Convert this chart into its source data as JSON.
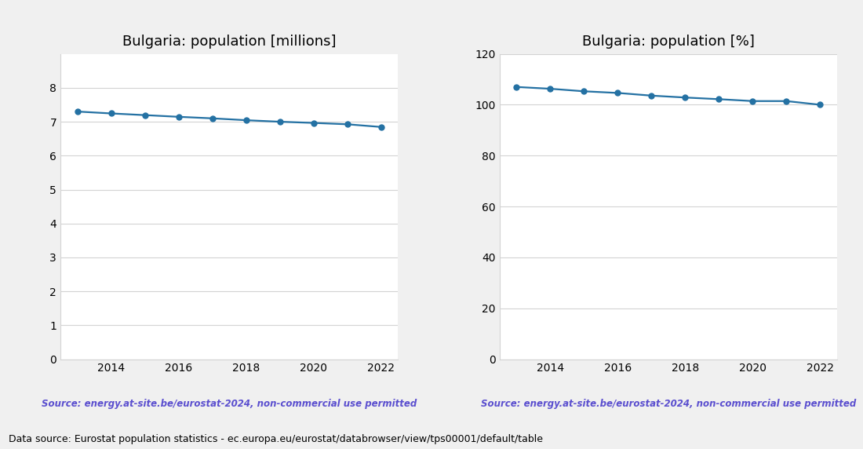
{
  "years": [
    2013,
    2014,
    2015,
    2016,
    2017,
    2018,
    2019,
    2020,
    2021,
    2022
  ],
  "millions": [
    7.3,
    7.245,
    7.195,
    7.145,
    7.1,
    7.045,
    7.0,
    6.965,
    6.925,
    6.845
  ],
  "percent": [
    107.0,
    106.3,
    105.3,
    104.65,
    103.6,
    102.85,
    102.2,
    101.45,
    101.45,
    100.0
  ],
  "title_millions": "Bulgaria: population [millions]",
  "title_percent": "Bulgaria: population [%]",
  "source_text": "Source: energy.at-site.be/eurostat-2024, non-commercial use permitted",
  "footer_text": "Data source: Eurostat population statistics - ec.europa.eu/eurostat/databrowser/view/tps00001/default/table",
  "line_color": "#2471a3",
  "source_color": "#5b4fcf",
  "ylim_millions": [
    0,
    9
  ],
  "ylim_percent": [
    0,
    120
  ],
  "yticks_millions": [
    0,
    1,
    2,
    3,
    4,
    5,
    6,
    7,
    8
  ],
  "yticks_percent": [
    0,
    20,
    40,
    60,
    80,
    100,
    120
  ],
  "xticks": [
    2014,
    2016,
    2018,
    2020,
    2022
  ],
  "marker": "o",
  "markersize": 5,
  "linewidth": 1.6,
  "bg_color": "#f0f0f0"
}
